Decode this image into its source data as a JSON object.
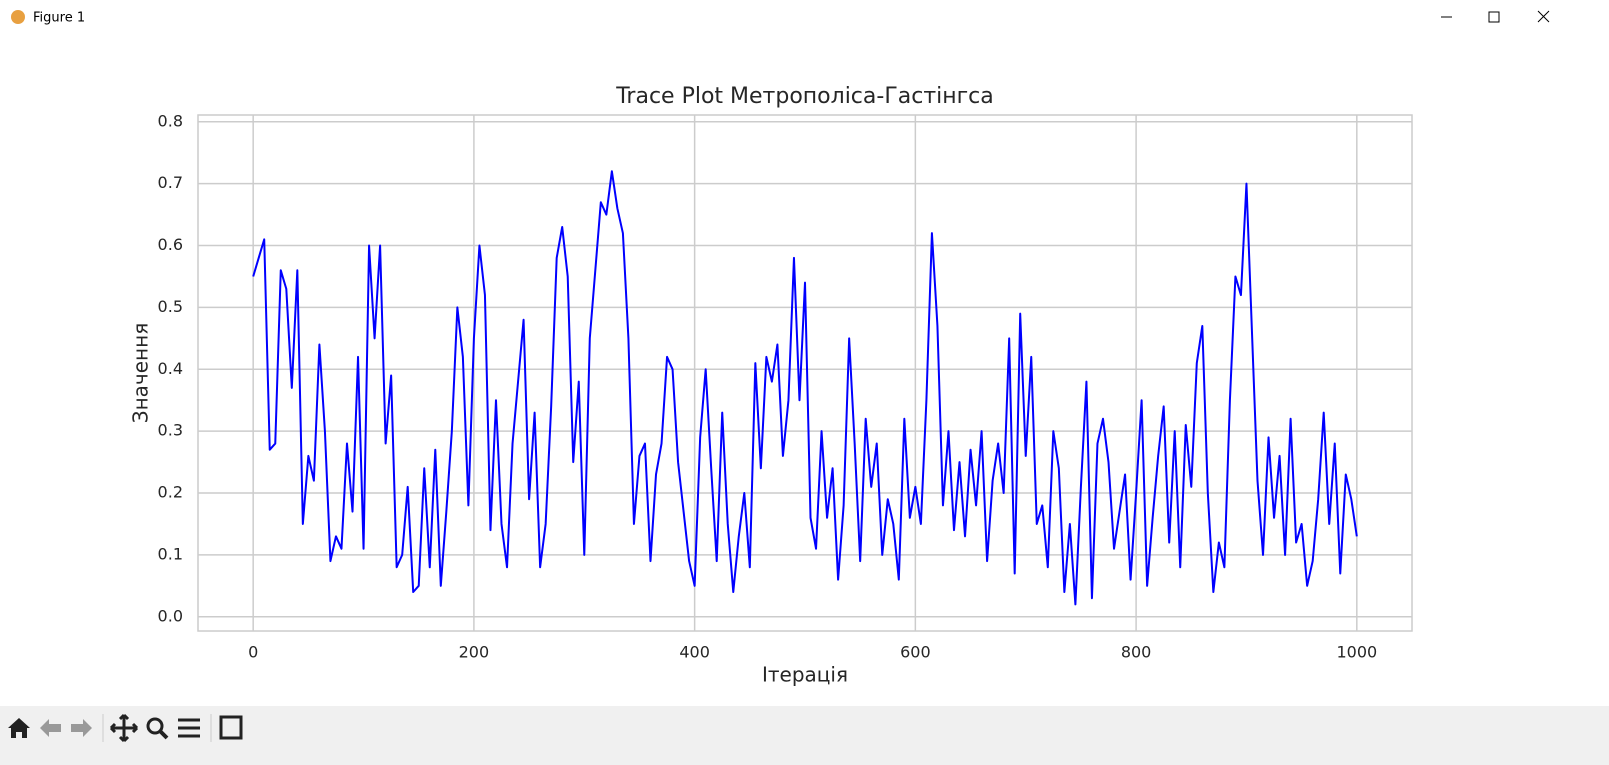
{
  "window": {
    "title": "Figure 1"
  },
  "chart_data": {
    "type": "line",
    "title": "Trace Plot Метрополіса-Гастінгса",
    "x_label": "Ітерація",
    "y_label": "Значення",
    "color": "#0000ff",
    "grid": true,
    "xlim": [
      -50,
      1050
    ],
    "ylim": [
      -0.023,
      0.811
    ],
    "xticks": [
      0,
      200,
      400,
      600,
      800,
      1000
    ],
    "yticks": [
      {
        "value": 0,
        "label": "0.0"
      },
      0.1,
      0.2,
      0.3,
      0.4,
      0.5,
      0.6,
      0.7,
      0.8
    ],
    "x": [
      0,
      5,
      10,
      15,
      20,
      25,
      30,
      35,
      40,
      45,
      50,
      55,
      60,
      65,
      70,
      75,
      80,
      85,
      90,
      95,
      100,
      105,
      110,
      115,
      120,
      125,
      130,
      135,
      140,
      145,
      150,
      155,
      160,
      165,
      170,
      175,
      180,
      185,
      190,
      195,
      200,
      205,
      210,
      215,
      220,
      225,
      230,
      235,
      240,
      245,
      250,
      255,
      260,
      265,
      270,
      275,
      280,
      285,
      290,
      295,
      300,
      305,
      310,
      315,
      320,
      325,
      330,
      335,
      340,
      345,
      350,
      355,
      360,
      365,
      370,
      375,
      380,
      385,
      390,
      395,
      400,
      405,
      410,
      415,
      420,
      425,
      430,
      435,
      440,
      445,
      450,
      455,
      460,
      465,
      470,
      475,
      480,
      485,
      490,
      495,
      500,
      505,
      510,
      515,
      520,
      525,
      530,
      535,
      540,
      545,
      550,
      555,
      560,
      565,
      570,
      575,
      580,
      585,
      590,
      595,
      600,
      605,
      610,
      615,
      620,
      625,
      630,
      635,
      640,
      645,
      650,
      655,
      660,
      665,
      670,
      675,
      680,
      685,
      690,
      695,
      700,
      705,
      710,
      715,
      720,
      725,
      730,
      735,
      740,
      745,
      750,
      755,
      760,
      765,
      770,
      775,
      780,
      785,
      790,
      795,
      800,
      805,
      810,
      815,
      820,
      825,
      830,
      835,
      840,
      845,
      850,
      855,
      860,
      865,
      870,
      875,
      880,
      885,
      890,
      895,
      900,
      905,
      910,
      915,
      920,
      925,
      930,
      935,
      940,
      945,
      950,
      955,
      960,
      965,
      970,
      975,
      980,
      985,
      990,
      995,
      1000
    ],
    "values": [
      0.55,
      0.58,
      0.61,
      0.27,
      0.28,
      0.56,
      0.53,
      0.37,
      0.56,
      0.15,
      0.26,
      0.22,
      0.44,
      0.3,
      0.09,
      0.13,
      0.11,
      0.28,
      0.17,
      0.42,
      0.11,
      0.6,
      0.45,
      0.6,
      0.28,
      0.39,
      0.08,
      0.1,
      0.21,
      0.04,
      0.05,
      0.24,
      0.08,
      0.27,
      0.05,
      0.17,
      0.3,
      0.5,
      0.42,
      0.18,
      0.45,
      0.6,
      0.52,
      0.14,
      0.35,
      0.15,
      0.08,
      0.28,
      0.38,
      0.48,
      0.19,
      0.33,
      0.08,
      0.15,
      0.34,
      0.58,
      0.63,
      0.55,
      0.25,
      0.38,
      0.1,
      0.45,
      0.56,
      0.67,
      0.65,
      0.72,
      0.66,
      0.62,
      0.45,
      0.15,
      0.26,
      0.28,
      0.09,
      0.23,
      0.28,
      0.42,
      0.4,
      0.25,
      0.17,
      0.09,
      0.05,
      0.29,
      0.4,
      0.24,
      0.09,
      0.33,
      0.15,
      0.04,
      0.13,
      0.2,
      0.08,
      0.41,
      0.24,
      0.42,
      0.38,
      0.44,
      0.26,
      0.35,
      0.58,
      0.35,
      0.54,
      0.16,
      0.11,
      0.3,
      0.16,
      0.24,
      0.06,
      0.18,
      0.45,
      0.28,
      0.09,
      0.32,
      0.21,
      0.28,
      0.1,
      0.19,
      0.15,
      0.06,
      0.32,
      0.16,
      0.21,
      0.15,
      0.35,
      0.62,
      0.47,
      0.18,
      0.3,
      0.14,
      0.25,
      0.13,
      0.27,
      0.18,
      0.3,
      0.09,
      0.22,
      0.28,
      0.2,
      0.45,
      0.07,
      0.49,
      0.26,
      0.42,
      0.15,
      0.18,
      0.08,
      0.3,
      0.24,
      0.04,
      0.15,
      0.02,
      0.21,
      0.38,
      0.03,
      0.28,
      0.32,
      0.25,
      0.11,
      0.17,
      0.23,
      0.06,
      0.2,
      0.35,
      0.05,
      0.16,
      0.26,
      0.34,
      0.12,
      0.3,
      0.08,
      0.31,
      0.21,
      0.41,
      0.47,
      0.2,
      0.04,
      0.12,
      0.08,
      0.35,
      0.55,
      0.52,
      0.7,
      0.46,
      0.22,
      0.1,
      0.29,
      0.16,
      0.26,
      0.1,
      0.32,
      0.12,
      0.15,
      0.05,
      0.09,
      0.19,
      0.33,
      0.15,
      0.28,
      0.07,
      0.23,
      0.19,
      0.13
    ]
  }
}
